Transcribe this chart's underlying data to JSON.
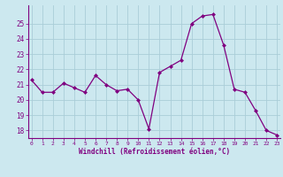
{
  "hours": [
    0,
    1,
    2,
    3,
    4,
    5,
    6,
    7,
    8,
    9,
    10,
    11,
    12,
    13,
    14,
    15,
    16,
    17,
    18,
    19,
    20,
    21,
    22,
    23
  ],
  "values": [
    21.3,
    20.5,
    20.5,
    21.1,
    20.8,
    20.5,
    21.6,
    21.0,
    20.6,
    20.7,
    20.0,
    18.1,
    21.8,
    22.2,
    22.6,
    25.0,
    25.5,
    25.6,
    23.6,
    20.7,
    20.5,
    19.3,
    18.0,
    17.7
  ],
  "ylim": [
    17.5,
    26.2
  ],
  "yticks": [
    18,
    19,
    20,
    21,
    22,
    23,
    24,
    25
  ],
  "xlim": [
    -0.3,
    23.3
  ],
  "xtick_labels": [
    "0",
    "1",
    "2",
    "3",
    "4",
    "5",
    "6",
    "7",
    "8",
    "9",
    "10",
    "11",
    "12",
    "13",
    "14",
    "15",
    "16",
    "17",
    "18",
    "19",
    "20",
    "21",
    "22",
    "23"
  ],
  "line_color": "#800080",
  "marker_color": "#800080",
  "bg_color": "#cce8ef",
  "grid_color": "#aacdd8",
  "xlabel": "Windchill (Refroidissement éolien,°C)",
  "spine_color": "#800080",
  "tick_label_color": "#800080",
  "xlabel_color": "#800080"
}
